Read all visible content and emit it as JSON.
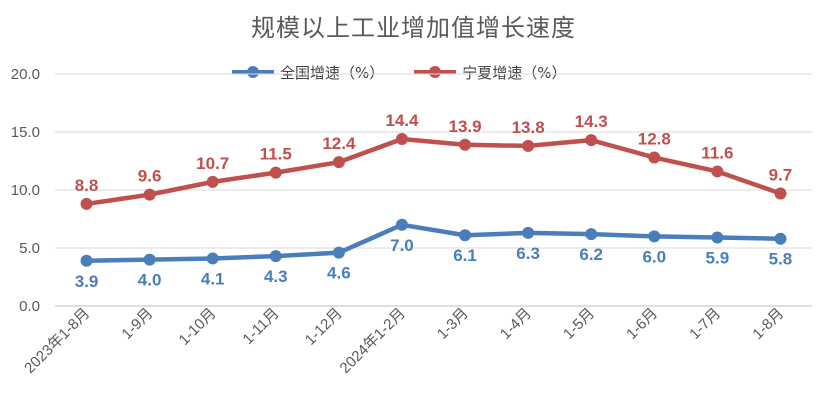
{
  "chart_data": {
    "type": "line",
    "title": "规模以上工业增加值增长速度",
    "categories": [
      "2023年1-8月",
      "1-9月",
      "1-10月",
      "1-11月",
      "1-12月",
      "2024年1-2月",
      "1-3月",
      "1-4月",
      "1-5月",
      "1-6月",
      "1-7月",
      "1-8月"
    ],
    "series": [
      {
        "name": "全国增速（%）",
        "color": "#4A7EBB",
        "values": [
          3.9,
          4.0,
          4.1,
          4.3,
          4.6,
          7.0,
          6.1,
          6.3,
          6.2,
          6.0,
          5.9,
          5.8
        ],
        "labels": [
          "3.9",
          "4.0",
          "4.1",
          "4.3",
          "4.6",
          "7.0",
          "6.1",
          "6.3",
          "6.2",
          "6.0",
          "5.9",
          "5.8"
        ]
      },
      {
        "name": "宁夏增速（%）",
        "color": "#C0504D",
        "values": [
          8.8,
          9.6,
          10.7,
          11.5,
          12.4,
          14.4,
          13.9,
          13.8,
          14.3,
          12.8,
          11.6,
          9.7
        ],
        "labels": [
          "8.8",
          "9.6",
          "10.7",
          "11.5",
          "12.4",
          "14.4",
          "13.9",
          "13.8",
          "14.3",
          "12.8",
          "11.6",
          "9.7"
        ]
      }
    ],
    "ylim": [
      0,
      20
    ],
    "yticks": [
      "0.0",
      "5.0",
      "10.0",
      "15.0",
      "20.0"
    ],
    "grid": true,
    "legend": "top-center"
  }
}
